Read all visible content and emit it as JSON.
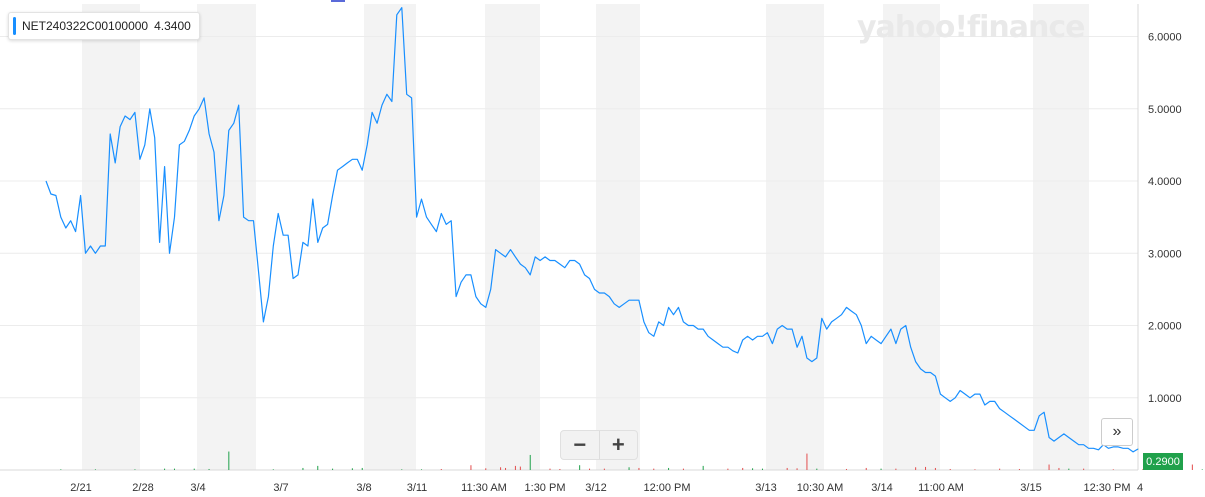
{
  "tooltip": {
    "symbol": "NET240322C00100000",
    "value": "4.3400",
    "color": "#188fff"
  },
  "logo": {
    "text": "yahoo!finance"
  },
  "controls": {
    "zoom_out": "−",
    "zoom_in": "+",
    "fast_forward": "»"
  },
  "last_price": {
    "label": "0.2900",
    "color": "#20a14b"
  },
  "chart_data": {
    "type": "line",
    "series": [
      {
        "values": [
          4.0,
          3.82,
          3.8,
          3.5,
          3.35,
          3.45,
          3.3,
          3.8,
          3.0,
          3.1,
          3.0,
          3.1,
          3.1,
          4.65,
          4.25,
          4.75,
          4.9,
          4.85,
          4.95,
          4.3,
          4.5,
          5.0,
          4.6,
          3.15,
          4.2,
          3.0,
          3.5,
          4.5,
          4.55,
          4.7,
          4.9,
          5.0,
          5.15,
          4.65,
          4.4,
          3.45,
          3.8,
          4.7,
          4.8,
          5.05,
          3.5,
          3.45,
          3.45,
          2.75,
          2.05,
          2.4,
          3.1,
          3.55,
          3.25,
          3.25,
          2.65,
          2.7,
          3.15,
          3.1,
          3.75,
          3.15,
          3.35,
          3.4,
          3.8,
          4.15,
          4.2,
          4.25,
          4.3,
          4.3,
          4.15,
          4.5,
          4.95,
          4.8,
          5.05,
          5.2,
          5.1,
          6.3,
          6.4,
          5.2,
          5.15,
          3.5,
          3.75,
          3.5,
          3.4,
          3.3,
          3.55,
          3.4,
          3.45,
          2.4,
          2.6,
          2.7,
          2.7,
          2.4,
          2.3,
          2.25,
          2.5,
          3.05,
          3.0,
          2.95,
          3.05,
          2.95,
          2.85,
          2.8,
          2.7,
          2.95,
          2.9,
          2.95,
          2.9,
          2.9,
          2.85,
          2.8,
          2.9,
          2.9,
          2.85,
          2.7,
          2.65,
          2.5,
          2.45,
          2.45,
          2.4,
          2.3,
          2.25,
          2.3,
          2.35,
          2.35,
          2.35,
          2.05,
          1.9,
          1.85,
          2.05,
          2.0,
          2.25,
          2.15,
          2.25,
          2.05,
          2.0,
          2.0,
          1.95,
          1.95,
          1.85,
          1.8,
          1.75,
          1.7,
          1.7,
          1.65,
          1.62,
          1.8,
          1.85,
          1.8,
          1.85,
          1.85,
          1.9,
          1.75,
          1.95,
          2.0,
          1.95,
          1.95,
          1.7,
          1.85,
          1.55,
          1.5,
          1.55,
          2.1,
          1.95,
          2.05,
          2.1,
          2.15,
          2.25,
          2.2,
          2.15,
          2.0,
          1.75,
          1.85,
          1.8,
          1.75,
          1.85,
          1.95,
          1.75,
          1.95,
          2.0,
          1.7,
          1.5,
          1.4,
          1.35,
          1.35,
          1.3,
          1.05,
          1.0,
          0.95,
          1.0,
          1.1,
          1.05,
          1.0,
          1.05,
          1.05,
          0.9,
          0.95,
          0.95,
          0.85,
          0.8,
          0.75,
          0.7,
          0.65,
          0.6,
          0.55,
          0.55,
          0.75,
          0.8,
          0.45,
          0.4,
          0.45,
          0.5,
          0.45,
          0.4,
          0.35,
          0.35,
          0.3,
          0.3,
          0.28,
          0.35,
          0.3,
          0.32,
          0.32,
          0.3,
          0.3,
          0.25,
          0.29
        ]
      }
    ],
    "volume": [
      {
        "i": 3,
        "v": 0.01,
        "up": true
      },
      {
        "i": 10,
        "v": 0.01,
        "up": true
      },
      {
        "i": 18,
        "v": 0.01,
        "up": true
      },
      {
        "i": 24,
        "v": 0.02,
        "up": true
      },
      {
        "i": 26,
        "v": 0.02,
        "up": true
      },
      {
        "i": 30,
        "v": 0.02,
        "up": true
      },
      {
        "i": 33,
        "v": 0.015,
        "up": true
      },
      {
        "i": 37,
        "v": 0.27,
        "up": true
      },
      {
        "i": 46,
        "v": 0.01,
        "up": true
      },
      {
        "i": 52,
        "v": 0.03,
        "up": true
      },
      {
        "i": 55,
        "v": 0.06,
        "up": true
      },
      {
        "i": 58,
        "v": 0.02,
        "up": true
      },
      {
        "i": 62,
        "v": 0.025,
        "up": true
      },
      {
        "i": 64,
        "v": 0.03,
        "up": true
      },
      {
        "i": 72,
        "v": 0.01,
        "up": true
      },
      {
        "i": 76,
        "v": 0.01,
        "up": true
      },
      {
        "i": 80,
        "v": 0.015,
        "up": false
      },
      {
        "i": 86,
        "v": 0.07,
        "up": false
      },
      {
        "i": 89,
        "v": 0.025,
        "up": false
      },
      {
        "i": 92,
        "v": 0.04,
        "up": false
      },
      {
        "i": 93,
        "v": 0.03,
        "up": false
      },
      {
        "i": 95,
        "v": 0.06,
        "up": false
      },
      {
        "i": 96,
        "v": 0.05,
        "up": false
      },
      {
        "i": 98,
        "v": 0.22,
        "up": true
      },
      {
        "i": 102,
        "v": 0.02,
        "up": false
      },
      {
        "i": 104,
        "v": 0.015,
        "up": false
      },
      {
        "i": 108,
        "v": 0.07,
        "up": true
      },
      {
        "i": 110,
        "v": 0.02,
        "up": false
      },
      {
        "i": 113,
        "v": 0.02,
        "up": false
      },
      {
        "i": 118,
        "v": 0.04,
        "up": true
      },
      {
        "i": 120,
        "v": 0.03,
        "up": false
      },
      {
        "i": 123,
        "v": 0.02,
        "up": false
      },
      {
        "i": 126,
        "v": 0.03,
        "up": true
      },
      {
        "i": 129,
        "v": 0.02,
        "up": false
      },
      {
        "i": 133,
        "v": 0.06,
        "up": true
      },
      {
        "i": 138,
        "v": 0.02,
        "up": false
      },
      {
        "i": 141,
        "v": 0.03,
        "up": false
      },
      {
        "i": 143,
        "v": 0.025,
        "up": true
      },
      {
        "i": 145,
        "v": 0.02,
        "up": true
      },
      {
        "i": 150,
        "v": 0.03,
        "up": false
      },
      {
        "i": 152,
        "v": 0.025,
        "up": false
      },
      {
        "i": 154,
        "v": 0.24,
        "up": false
      },
      {
        "i": 156,
        "v": 0.02,
        "up": true
      },
      {
        "i": 162,
        "v": 0.015,
        "up": false
      },
      {
        "i": 166,
        "v": 0.03,
        "up": false
      },
      {
        "i": 169,
        "v": 0.02,
        "up": true
      },
      {
        "i": 172,
        "v": 0.02,
        "up": false
      },
      {
        "i": 176,
        "v": 0.04,
        "up": false
      },
      {
        "i": 178,
        "v": 0.045,
        "up": false
      },
      {
        "i": 180,
        "v": 0.03,
        "up": false
      },
      {
        "i": 183,
        "v": 0.015,
        "up": false
      },
      {
        "i": 188,
        "v": 0.01,
        "up": false
      },
      {
        "i": 193,
        "v": 0.02,
        "up": false
      },
      {
        "i": 197,
        "v": 0.015,
        "up": false
      },
      {
        "i": 203,
        "v": 0.08,
        "up": false
      },
      {
        "i": 205,
        "v": 0.03,
        "up": false
      },
      {
        "i": 207,
        "v": 0.02,
        "up": true
      },
      {
        "i": 210,
        "v": 0.02,
        "up": false
      },
      {
        "i": 216,
        "v": 0.01,
        "up": false
      },
      {
        "i": 222,
        "v": 0.015,
        "up": false
      },
      {
        "i": 226,
        "v": 0.03,
        "up": false
      },
      {
        "i": 228,
        "v": 0.02,
        "up": false
      },
      {
        "i": 232,
        "v": 0.08,
        "up": false
      },
      {
        "i": 234,
        "v": 0.01,
        "up": true
      }
    ],
    "x_tick_labels": [
      "2/21",
      "2/28",
      "3/4",
      "3/7",
      "3/8",
      "3/11",
      "11:30 AM",
      "1:30 PM",
      "3/12",
      "12:00 PM",
      "3/13",
      "10:30 AM",
      "3/14",
      "11:00 AM",
      "3/15",
      "12:30 PM",
      "4"
    ],
    "y_tick_labels": [
      "6.0000",
      "5.0000",
      "4.0000",
      "3.0000",
      "2.0000",
      "1.0000"
    ],
    "y_ticks": [
      6,
      5,
      4,
      3,
      2,
      1
    ],
    "ylim": [
      0,
      6.45
    ],
    "grid": true,
    "line_color": "#188fff",
    "volume_up_color": "#20a14b",
    "volume_down_color": "#e34c4c"
  }
}
